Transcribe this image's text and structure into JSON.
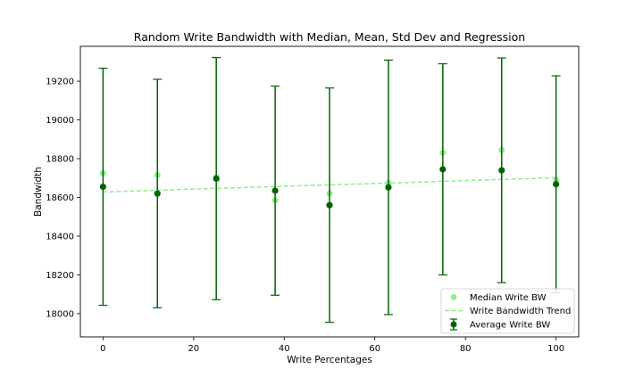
{
  "chart_data": {
    "type": "scatter",
    "title": "Random Write Bandwidth with Median, Mean, Std Dev and Regression",
    "xlabel": "Write Percentages",
    "ylabel": "Bandwidth",
    "xlim": [
      -5,
      105
    ],
    "ylim": [
      17880,
      19380
    ],
    "xticks": [
      0,
      20,
      40,
      60,
      80,
      100
    ],
    "yticks": [
      18000,
      18200,
      18400,
      18600,
      18800,
      19000,
      19200
    ],
    "grid": false,
    "legend_position": "bottom-right",
    "x": [
      0,
      12,
      25,
      38,
      50,
      63,
      75,
      88,
      100
    ],
    "series": [
      {
        "name": "Median Write BW",
        "kind": "scatter",
        "color": "#90ee90",
        "values": [
          18725,
          18715,
          18705,
          18585,
          18620,
          18675,
          18830,
          18845,
          18690
        ]
      },
      {
        "name": "Write Bandwidth Trend",
        "kind": "line",
        "color": "#90ee90",
        "values": [
          18628,
          18637,
          18647,
          18656,
          18665,
          18674,
          18683,
          18693,
          18702
        ]
      },
      {
        "name": "Average Write BW",
        "kind": "errorbar",
        "color": "#006400",
        "values": [
          18655,
          18620,
          18697,
          18635,
          18560,
          18652,
          18745,
          18740,
          18668
        ],
        "error": [
          612,
          590,
          625,
          540,
          605,
          657,
          545,
          580,
          560
        ]
      }
    ]
  }
}
